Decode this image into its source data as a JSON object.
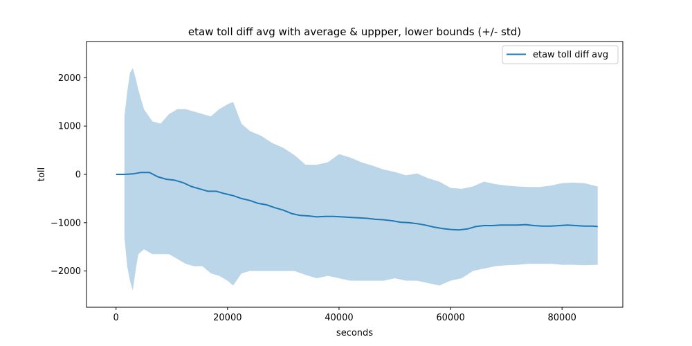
{
  "chart_data": {
    "type": "line",
    "title": "etaw toll diff avg with average & uppper, lower bounds (+/- std)",
    "xlabel": "seconds",
    "ylabel": "toll",
    "xlim": [
      -5300,
      90900
    ],
    "ylim": [
      -2750,
      2750
    ],
    "xticks": [
      0,
      20000,
      40000,
      60000,
      80000
    ],
    "xtick_labels": [
      "0",
      "20000",
      "40000",
      "60000",
      "80000"
    ],
    "yticks": [
      -2000,
      -1000,
      0,
      1000,
      2000
    ],
    "ytick_labels": [
      "−2000",
      "−1000",
      "0",
      "1000",
      "2000"
    ],
    "grid": false,
    "legend": {
      "position": "top-right",
      "entries": [
        "etaw toll diff avg"
      ]
    },
    "colors": {
      "line": "#1f77b4",
      "band": "#1f77b4",
      "band_opacity": 0.3
    },
    "series": [
      {
        "name": "etaw toll diff avg",
        "x": [
          0,
          1500,
          3000,
          4500,
          6000,
          7500,
          9000,
          10500,
          12000,
          13500,
          15000,
          16500,
          18000,
          19500,
          21000,
          22500,
          24000,
          25500,
          27000,
          28500,
          30000,
          31500,
          33000,
          34500,
          36000,
          37500,
          39000,
          40500,
          42000,
          43500,
          45000,
          46500,
          48000,
          49500,
          51000,
          52500,
          54000,
          55500,
          57000,
          58500,
          60000,
          61500,
          63000,
          64500,
          66000,
          67500,
          69000,
          70500,
          72000,
          73500,
          75000,
          76500,
          78000,
          79500,
          81000,
          82500,
          84000,
          85500,
          86400
        ],
        "y": [
          0,
          0,
          10,
          40,
          40,
          -50,
          -100,
          -120,
          -170,
          -250,
          -300,
          -350,
          -350,
          -400,
          -440,
          -500,
          -540,
          -600,
          -630,
          -690,
          -740,
          -810,
          -850,
          -860,
          -880,
          -870,
          -870,
          -880,
          -890,
          -900,
          -910,
          -930,
          -940,
          -960,
          -990,
          -1000,
          -1020,
          -1050,
          -1090,
          -1120,
          -1140,
          -1150,
          -1130,
          -1080,
          -1060,
          -1060,
          -1050,
          -1050,
          -1050,
          -1040,
          -1060,
          -1070,
          -1070,
          -1060,
          -1050,
          -1060,
          -1070,
          -1070,
          -1080
        ]
      }
    ],
    "band": {
      "name": "+/- std",
      "x": [
        1500,
        2000,
        2500,
        3000,
        3500,
        4000,
        5000,
        6500,
        8000,
        9500,
        11000,
        12500,
        14000,
        15500,
        17000,
        18500,
        20000,
        21000,
        22500,
        24000,
        26000,
        28000,
        30000,
        32000,
        34000,
        36000,
        38000,
        40000,
        42000,
        44000,
        46000,
        48000,
        50000,
        52000,
        54000,
        56000,
        58000,
        60000,
        62000,
        64000,
        66000,
        68000,
        70000,
        72000,
        74000,
        76000,
        78000,
        80000,
        82000,
        84000,
        86400
      ],
      "upper": [
        1200,
        1700,
        2100,
        2200,
        2000,
        1750,
        1350,
        1100,
        1050,
        1250,
        1350,
        1350,
        1300,
        1250,
        1200,
        1350,
        1450,
        1500,
        1050,
        900,
        800,
        650,
        550,
        400,
        200,
        200,
        250,
        420,
        350,
        250,
        180,
        100,
        50,
        -20,
        20,
        -80,
        -150,
        -280,
        -300,
        -250,
        -150,
        -200,
        -230,
        -250,
        -260,
        -260,
        -230,
        -180,
        -170,
        -180,
        -250
      ],
      "lower": [
        -1300,
        -1900,
        -2200,
        -2400,
        -2000,
        -1650,
        -1550,
        -1650,
        -1650,
        -1650,
        -1750,
        -1850,
        -1900,
        -1900,
        -2050,
        -2100,
        -2200,
        -2300,
        -2050,
        -2000,
        -2000,
        -2000,
        -2000,
        -2000,
        -2080,
        -2150,
        -2100,
        -2150,
        -2200,
        -2200,
        -2200,
        -2200,
        -2150,
        -2200,
        -2200,
        -2250,
        -2300,
        -2200,
        -2150,
        -2000,
        -1950,
        -1900,
        -1880,
        -1870,
        -1850,
        -1850,
        -1850,
        -1870,
        -1870,
        -1880,
        -1870
      ]
    }
  }
}
